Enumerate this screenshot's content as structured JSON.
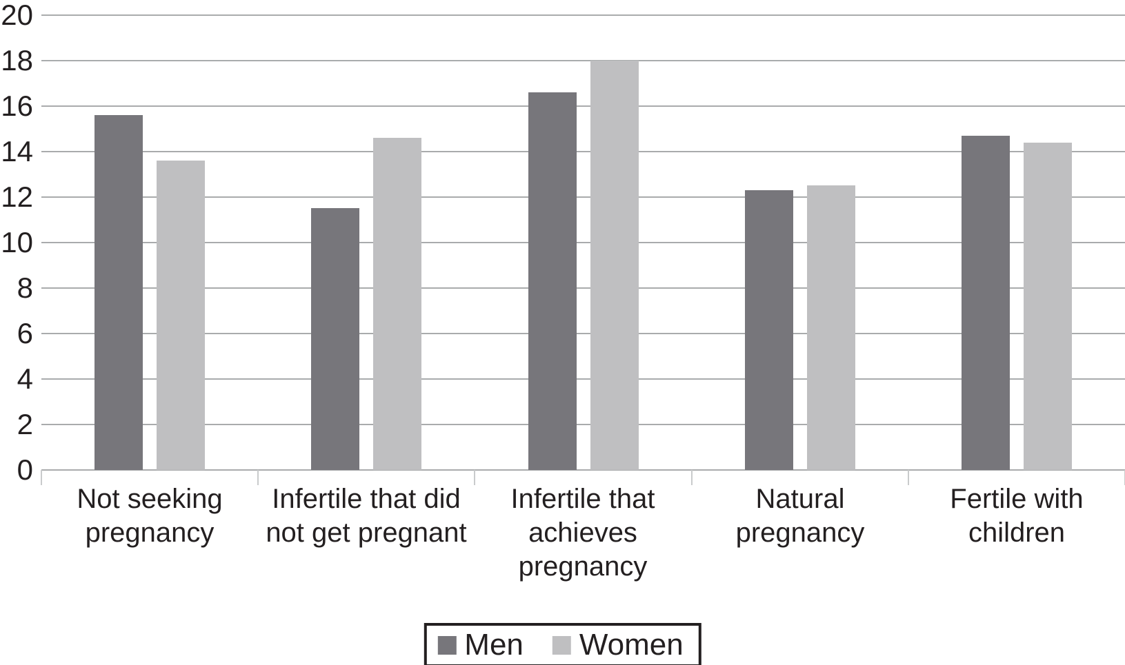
{
  "chart_data": {
    "type": "bar",
    "title": "",
    "xlabel": "",
    "ylabel": "",
    "categories": [
      "Not seeking pregnancy",
      "Infertile that did not get pregnant",
      "Infertile that achieves pregnancy",
      "Natural pregnancy",
      "Fertile with children"
    ],
    "category_lines": [
      [
        "Not seeking",
        "pregnancy"
      ],
      [
        "Infertile that did",
        "not get pregnant"
      ],
      [
        "Infertile that",
        "achieves",
        "pregnancy"
      ],
      [
        "Natural",
        "pregnancy"
      ],
      [
        "Fertile with",
        "children"
      ]
    ],
    "series": [
      {
        "name": "Men",
        "color": "#77767b",
        "values": [
          15.6,
          11.5,
          16.6,
          12.3,
          14.7
        ]
      },
      {
        "name": "Women",
        "color": "#bfbfc1",
        "values": [
          13.6,
          14.6,
          18.0,
          12.5,
          14.4
        ]
      }
    ],
    "ylim": [
      0,
      20
    ],
    "ytick_step": 2,
    "ytick_labels": [
      "0",
      "2",
      "4",
      "6",
      "8",
      "10",
      "12",
      "14",
      "16",
      "18",
      "20"
    ],
    "grid": true,
    "gridline_color": "#a9abac",
    "text_color": "#231f20",
    "legend_position": "bottom"
  }
}
